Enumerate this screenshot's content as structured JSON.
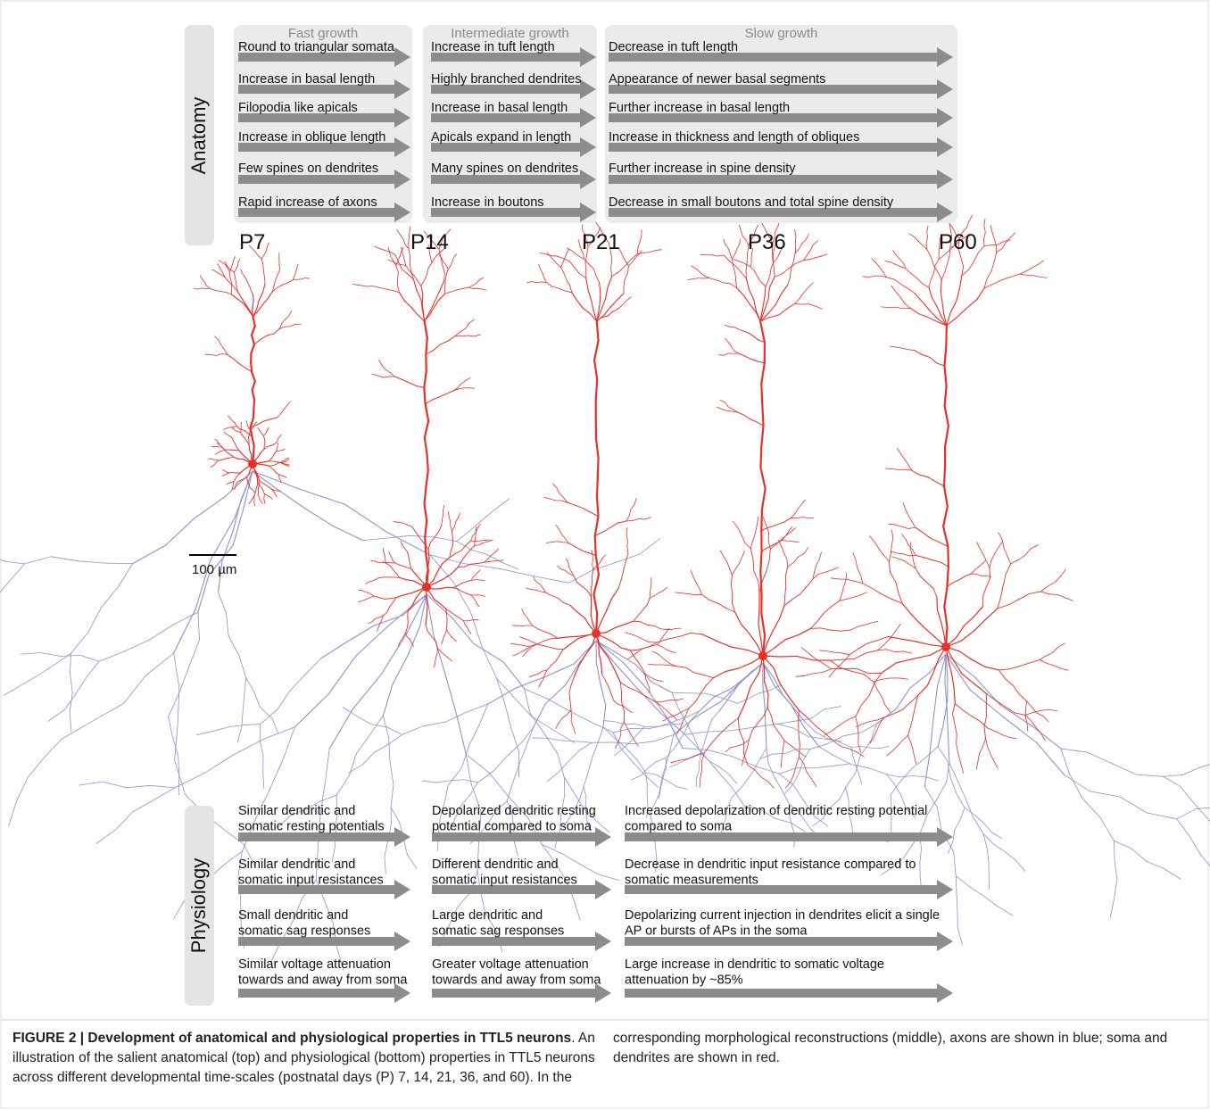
{
  "anatomy": {
    "label": "Anatomy",
    "columns": [
      {
        "title": "Fast growth",
        "items": [
          "Round to triangular somata",
          "Increase in basal length",
          "Filopodia like apicals",
          "Increase in oblique length",
          "Few spines on dendrites",
          "Rapid increase of axons"
        ]
      },
      {
        "title": "Intermediate growth",
        "items": [
          "Increase in tuft length",
          "Highly branched dendrites",
          "Increase in basal length",
          "Apicals expand in length",
          "Many spines on dendrites",
          "Increase in boutons"
        ]
      },
      {
        "title": "Slow growth",
        "items": [
          "Decrease in tuft length",
          "Appearance of newer basal segments",
          "Further increase in basal length",
          "Increase in thickness and length of obliques",
          "Further increase in spine density",
          "Decrease in small boutons and total spine density"
        ]
      }
    ]
  },
  "ages": [
    "P7",
    "P14",
    "P21",
    "P36",
    "P60"
  ],
  "scale_bar": "100 µm",
  "physiology": {
    "label": "Physiology",
    "columns": [
      {
        "items": [
          [
            "Similar dendritic and",
            "somatic resting potentials"
          ],
          [
            "Similar dendritic and",
            "somatic input resistances"
          ],
          [
            "Small dendritic and",
            "somatic sag responses"
          ],
          [
            "Similar voltage attenuation",
            "towards and away from soma"
          ]
        ]
      },
      {
        "items": [
          [
            "Depolarized dendritic resting",
            "potential compared to soma"
          ],
          [
            "Different dendritic and",
            "somatic input resistances"
          ],
          [
            "Large dendritic and",
            "somatic sag responses"
          ],
          [
            "Greater voltage attenuation",
            "towards and away from soma"
          ]
        ]
      },
      {
        "items": [
          [
            "Increased depolarization of dendritic resting potential",
            "compared to soma"
          ],
          [
            "Decrease in dendritic input resistance compared to",
            "somatic measurements"
          ],
          [
            "Depolarizing current injection in dendrites elicit a single",
            "AP or bursts of APs in the soma"
          ],
          [
            "Large increase in dendritic to somatic voltage",
            "attenuation by ~85%"
          ]
        ]
      }
    ]
  },
  "caption": {
    "title": "FIGURE 2 | Development of anatomical and physiological properties in TTL5 neurons",
    "text": ". An illustration of the salient anatomical (top) and physiological (bottom) properties in TTL5 neurons across different developmental time-scales (postnatal days (P) 7, 14, 21, 36, and 60). In the corresponding morphological reconstructions (middle), axons are shown in blue; soma and dendrites are shown in red."
  }
}
